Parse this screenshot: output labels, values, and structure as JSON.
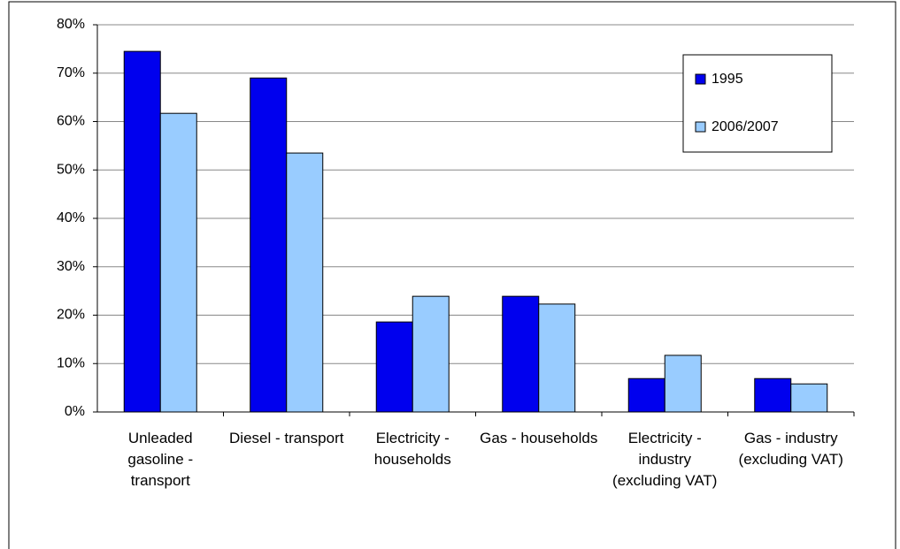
{
  "chart_data": {
    "type": "bar",
    "categories": [
      "Unleaded gasoline - transport",
      "Diesel - transport",
      "Electricity - households",
      "Gas - households",
      "Electricity - industry (excluding VAT)",
      "Gas - industry (excluding VAT)"
    ],
    "series": [
      {
        "name": "1995",
        "color": "#0000ee",
        "values": [
          74.5,
          69.0,
          18.6,
          23.9,
          6.9,
          6.9
        ]
      },
      {
        "name": "2006/2007",
        "color": "#99ccff",
        "values": [
          61.7,
          53.5,
          23.9,
          22.3,
          11.7,
          5.8
        ]
      }
    ],
    "ylim": [
      0,
      80
    ],
    "yticks": [
      {
        "value": 0,
        "label": "0%"
      },
      {
        "value": 10,
        "label": "10%"
      },
      {
        "value": 20,
        "label": "20%"
      },
      {
        "value": 30,
        "label": "30%"
      },
      {
        "value": 40,
        "label": "40%"
      },
      {
        "value": 50,
        "label": "50%"
      },
      {
        "value": 60,
        "label": "60%"
      },
      {
        "value": 70,
        "label": "70%"
      },
      {
        "value": 80,
        "label": "80%"
      }
    ],
    "grid": true,
    "legend": "top-right"
  }
}
